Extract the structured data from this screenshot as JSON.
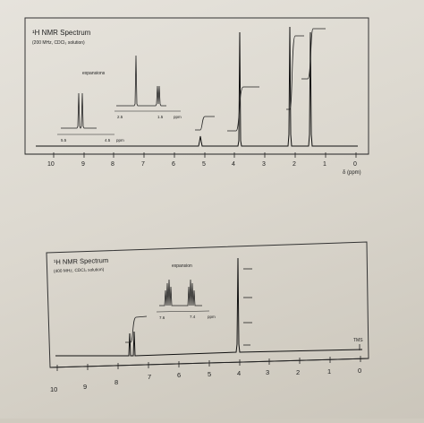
{
  "spectrum1": {
    "title": "¹H NMR Spectrum",
    "conditions": "(200 MHz, CDCl₃ solution)",
    "expansions_label": "expansions",
    "exp1_ticks": [
      "5.5",
      "4.5"
    ],
    "exp1_unit": "ppm",
    "exp2_ticks": [
      "2.5",
      "1.5"
    ],
    "exp2_unit": "ppm",
    "axis_ticks": [
      "10",
      "9",
      "8",
      "7",
      "6",
      "5",
      "4",
      "3",
      "2",
      "1",
      "0"
    ],
    "axis_label": "δ (ppm)"
  },
  "spectrum2": {
    "title": "¹H NMR Spectrum",
    "conditions": "(400 MHz, CDCl₃ solution)",
    "expansion_label": "expansion",
    "exp_ticks": [
      "7.6",
      "7.4"
    ],
    "exp_unit": "ppm",
    "corner_label": "TMS",
    "axis_ticks": [
      "10",
      "9",
      "8",
      "7",
      "6",
      "5",
      "4",
      "3",
      "2",
      "1",
      "0"
    ]
  },
  "colors": {
    "paper": "#e3e0d9",
    "ink": "#222222"
  }
}
